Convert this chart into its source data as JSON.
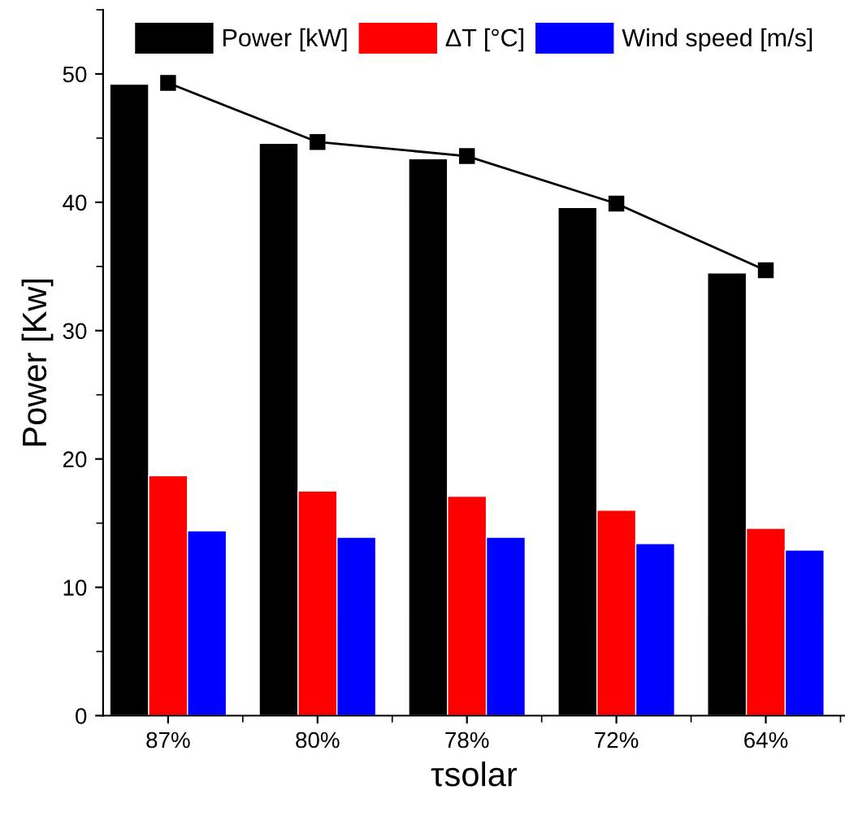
{
  "chart_data": {
    "type": "bar",
    "xlabel": "τsolar",
    "ylabel": "Power [Kw]",
    "categories": [
      "87%",
      "80%",
      "78%",
      "72%",
      "64%"
    ],
    "series": [
      {
        "name": "Power [kW]",
        "color": "#000000",
        "values": [
          49.2,
          44.6,
          43.4,
          39.6,
          34.5
        ]
      },
      {
        "name": "ΔT [°C]",
        "color": "#ff0000",
        "values": [
          18.7,
          17.5,
          17.1,
          16.0,
          14.6
        ]
      },
      {
        "name": "Wind speed [m/s]",
        "color": "#0000ff",
        "values": [
          14.4,
          13.9,
          13.9,
          13.4,
          12.9
        ]
      },
      {
        "type": "line",
        "color": "#000000",
        "marker": "square",
        "line_style": "solid",
        "values": [
          49.3,
          44.7,
          43.6,
          39.9,
          34.7
        ]
      }
    ],
    "ylim": [
      0,
      55
    ],
    "yticks": [
      0,
      10,
      20,
      30,
      40,
      50
    ],
    "grid": false,
    "legend": "top"
  }
}
